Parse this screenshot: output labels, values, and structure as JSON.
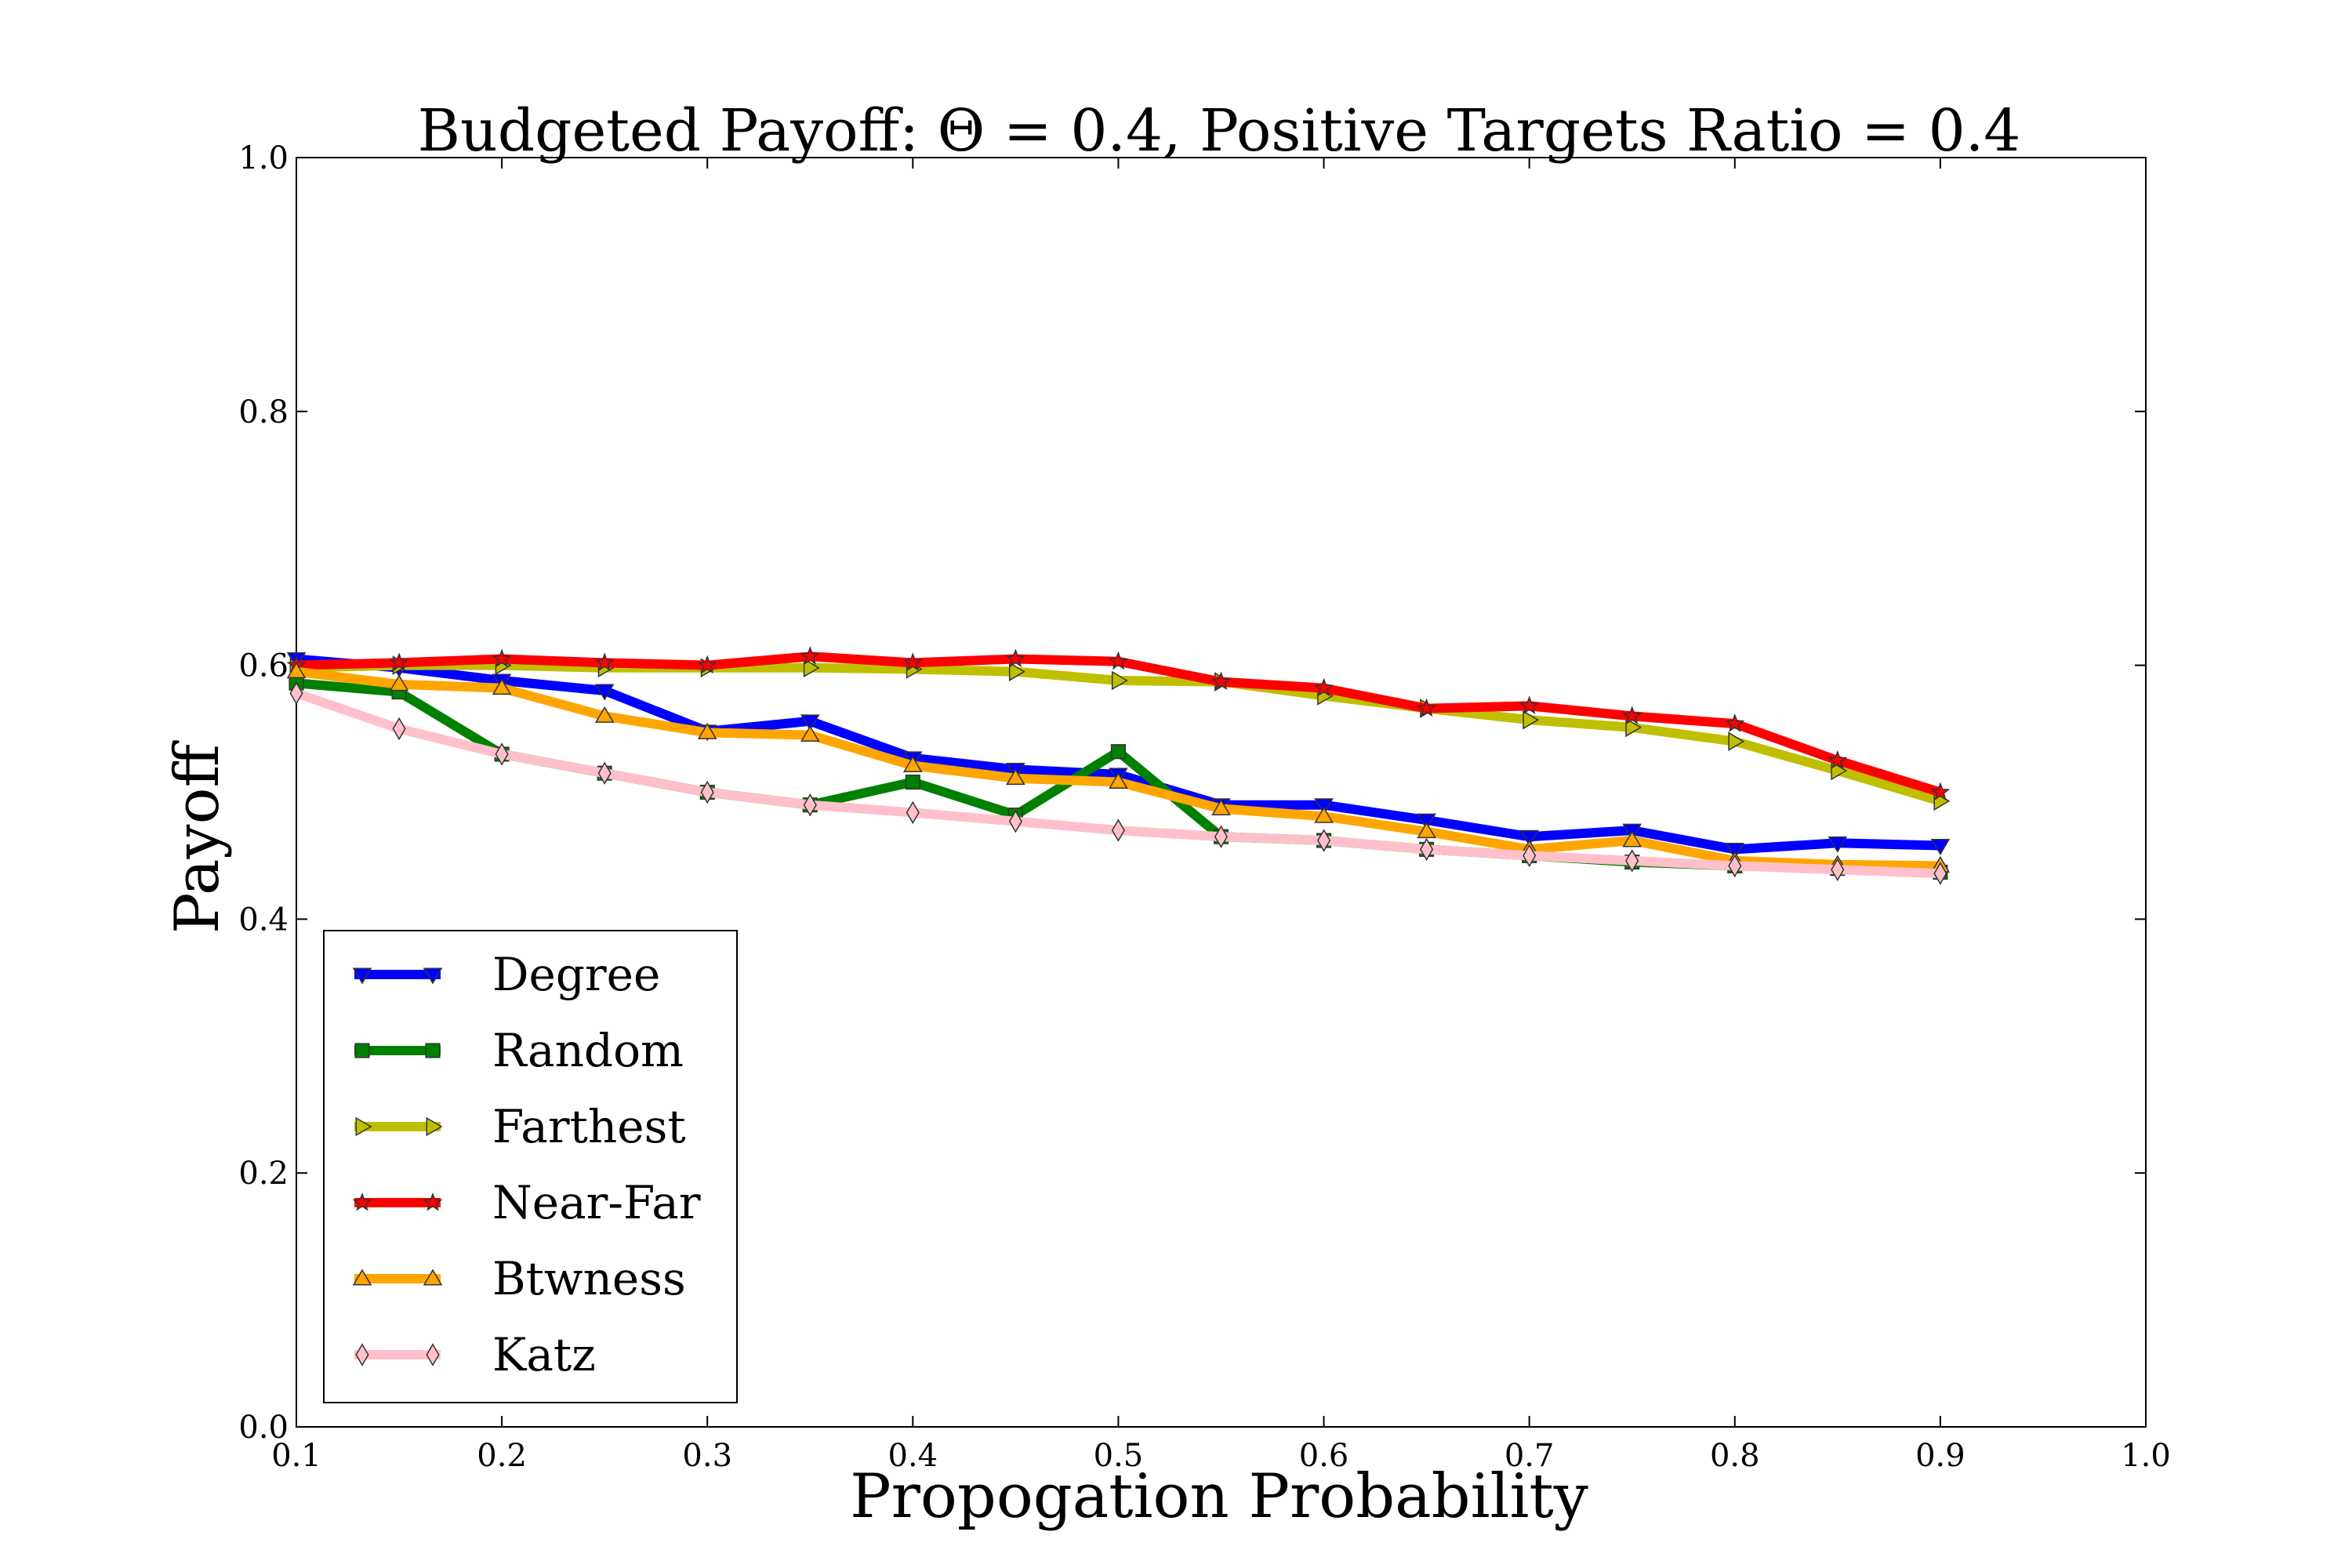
{
  "chart_data": {
    "type": "line",
    "title": "Budgeted Payoff: Θ = 0.4, Positive Targets Ratio = 0.4",
    "xlabel": "Propogation Probability",
    "ylabel": "Payoff",
    "xlim": [
      0.1,
      1.0
    ],
    "ylim": [
      0.0,
      1.0
    ],
    "x_ticks": [
      "0.1",
      "0.2",
      "0.3",
      "0.4",
      "0.5",
      "0.6",
      "0.7",
      "0.8",
      "0.9",
      "1.0"
    ],
    "y_ticks": [
      "0.0",
      "0.2",
      "0.4",
      "0.6",
      "0.8",
      "1.0"
    ],
    "grid": false,
    "legend_position": "lower-left",
    "x": [
      0.1,
      0.15,
      0.2,
      0.25,
      0.3,
      0.35,
      0.4,
      0.45,
      0.5,
      0.55,
      0.6,
      0.65,
      0.7,
      0.75,
      0.8,
      0.85,
      0.9
    ],
    "series": [
      {
        "name": "Degree",
        "color": "#0000ff",
        "marker": "triangle-down",
        "values": [
          0.605,
          0.598,
          0.588,
          0.58,
          0.548,
          0.556,
          0.527,
          0.518,
          0.514,
          0.49,
          0.49,
          0.478,
          0.465,
          0.47,
          0.455,
          0.46,
          0.458
        ]
      },
      {
        "name": "Random",
        "color": "#008000",
        "marker": "square",
        "values": [
          0.586,
          0.579,
          0.53,
          0.515,
          0.5,
          0.49,
          0.508,
          0.482,
          0.532,
          0.465,
          0.462,
          0.455,
          0.45,
          0.445,
          0.442,
          0.44,
          0.437
        ]
      },
      {
        "name": "Farthest",
        "color": "#bfbf00",
        "marker": "triangle-right",
        "values": [
          0.598,
          0.6,
          0.6,
          0.598,
          0.598,
          0.598,
          0.597,
          0.595,
          0.588,
          0.587,
          0.576,
          0.566,
          0.557,
          0.551,
          0.54,
          0.517,
          0.493
        ]
      },
      {
        "name": "Near-Far",
        "color": "#ff0000",
        "marker": "star",
        "values": [
          0.6,
          0.602,
          0.605,
          0.602,
          0.6,
          0.607,
          0.602,
          0.605,
          0.603,
          0.587,
          0.582,
          0.566,
          0.568,
          0.56,
          0.554,
          0.525,
          0.5
        ]
      },
      {
        "name": "Btwness",
        "color": "#ffa500",
        "marker": "triangle-up",
        "values": [
          0.595,
          0.585,
          0.582,
          0.56,
          0.547,
          0.545,
          0.521,
          0.511,
          0.508,
          0.487,
          0.481,
          0.469,
          0.455,
          0.462,
          0.446,
          0.443,
          0.442
        ]
      },
      {
        "name": "Katz",
        "color": "#ffc0cb",
        "marker": "diamond",
        "values": [
          0.578,
          0.55,
          0.53,
          0.515,
          0.5,
          0.49,
          0.484,
          0.477,
          0.47,
          0.465,
          0.462,
          0.455,
          0.45,
          0.446,
          0.442,
          0.439,
          0.436
        ]
      }
    ]
  }
}
